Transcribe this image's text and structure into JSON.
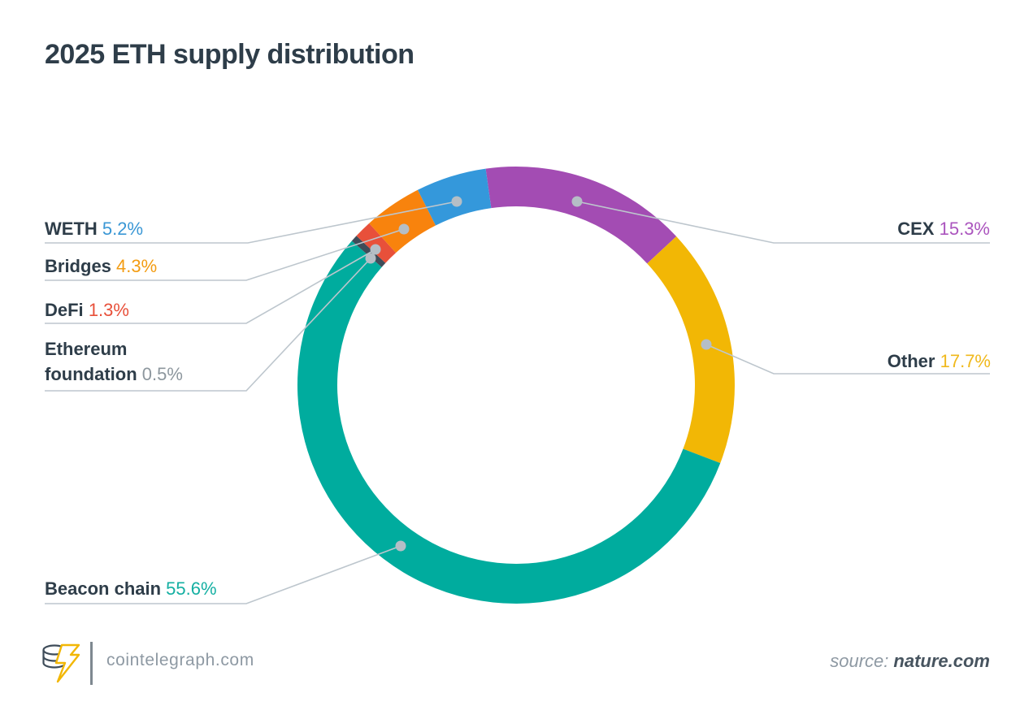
{
  "title": "2025 ETH supply distribution",
  "chart_data": {
    "type": "pie",
    "subtype": "donut",
    "title": "2025 ETH supply distribution",
    "units": "percent of ETH supply",
    "start_angle_deg_from_top": -8,
    "legend_position": "callout-labels",
    "segments": [
      {
        "label": "CEX",
        "value": 15.3,
        "display_value": "15.3%",
        "color": "#A34CB3",
        "value_color": "#AB55BE"
      },
      {
        "label": "Other",
        "value": 17.7,
        "display_value": "17.7%",
        "color": "#F2B705",
        "value_color": "#F0B91D"
      },
      {
        "label": "Beacon chain",
        "value": 55.6,
        "display_value": "55.6%",
        "color": "#00AC9E",
        "value_color": "#14AFA2"
      },
      {
        "label": "Ethereum foundation",
        "value": 0.5,
        "display_value": "0.5%",
        "color": "#3E4C59",
        "value_color": "#8D979E"
      },
      {
        "label": "DeFi",
        "value": 1.3,
        "display_value": "1.3%",
        "color": "#E8503A",
        "value_color": "#E8503A"
      },
      {
        "label": "Bridges",
        "value": 4.3,
        "display_value": "4.3%",
        "color": "#F8830D",
        "value_color": "#F39C12"
      },
      {
        "label": "WETH",
        "value": 5.2,
        "display_value": "5.2%",
        "color": "#3498DB",
        "value_color": "#3A97D5"
      }
    ]
  },
  "footer": {
    "brand": "cointelegraph.com",
    "source_prefix": "source:",
    "source_name": "nature.com"
  },
  "colors": {
    "text": "#2E3D49",
    "leader_line": "#BDC6CD",
    "leader_dot": "#B5BEC6",
    "muted": "#8E99A3"
  }
}
